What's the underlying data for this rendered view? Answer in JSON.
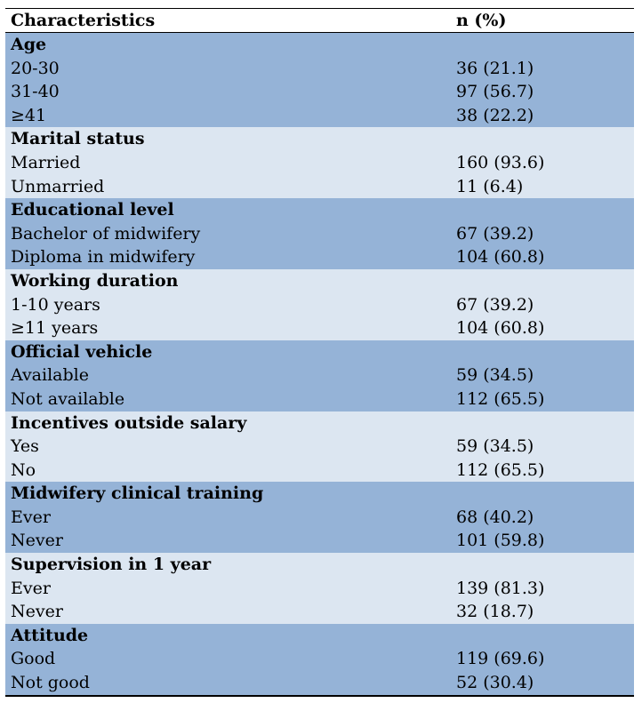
{
  "header": {
    "col1": "Characteristics",
    "col2": "n (%)"
  },
  "groups": [
    {
      "title": "Age",
      "rows": [
        {
          "label": "20-30",
          "value": "36 (21.1)"
        },
        {
          "label": "31-40",
          "value": "97 (56.7)"
        },
        {
          "label": "≥41",
          "value": "38 (22.2)"
        }
      ]
    },
    {
      "title": "Marital status",
      "rows": [
        {
          "label": "Married",
          "value": "160 (93.6)"
        },
        {
          "label": "Unmarried",
          "value": "11 (6.4)"
        }
      ]
    },
    {
      "title": "Educational level",
      "rows": [
        {
          "label": "Bachelor of midwifery",
          "value": "67 (39.2)"
        },
        {
          "label": "Diploma in midwifery",
          "value": "104 (60.8)"
        }
      ]
    },
    {
      "title": "Working duration",
      "rows": [
        {
          "label": "1-10 years",
          "value": "67 (39.2)"
        },
        {
          "label": "≥11 years",
          "value": "104 (60.8)"
        }
      ]
    },
    {
      "title": "Official vehicle",
      "rows": [
        {
          "label": "Available",
          "value": "59 (34.5)"
        },
        {
          "label": "Not available",
          "value": "112 (65.5)"
        }
      ]
    },
    {
      "title": "Incentives outside salary",
      "rows": [
        {
          "label": "Yes",
          "value": "59 (34.5)"
        },
        {
          "label": "No",
          "value": "112 (65.5)"
        }
      ]
    },
    {
      "title": "Midwifery clinical training",
      "rows": [
        {
          "label": "Ever",
          "value": "68 (40.2)"
        },
        {
          "label": "Never",
          "value": "101 (59.8)"
        }
      ]
    },
    {
      "title": "Supervision in 1 year",
      "rows": [
        {
          "label": "Ever",
          "value": "139 (81.3)"
        },
        {
          "label": "Never",
          "value": "32 (18.7)"
        }
      ]
    },
    {
      "title": "Attitude",
      "rows": [
        {
          "label": "Good",
          "value": "119 (69.6)"
        },
        {
          "label": "Not good",
          "value": "52 (30.4)"
        }
      ]
    }
  ],
  "colors": {
    "dark_band": "#95b3d7",
    "light_band": "#dce6f1"
  }
}
